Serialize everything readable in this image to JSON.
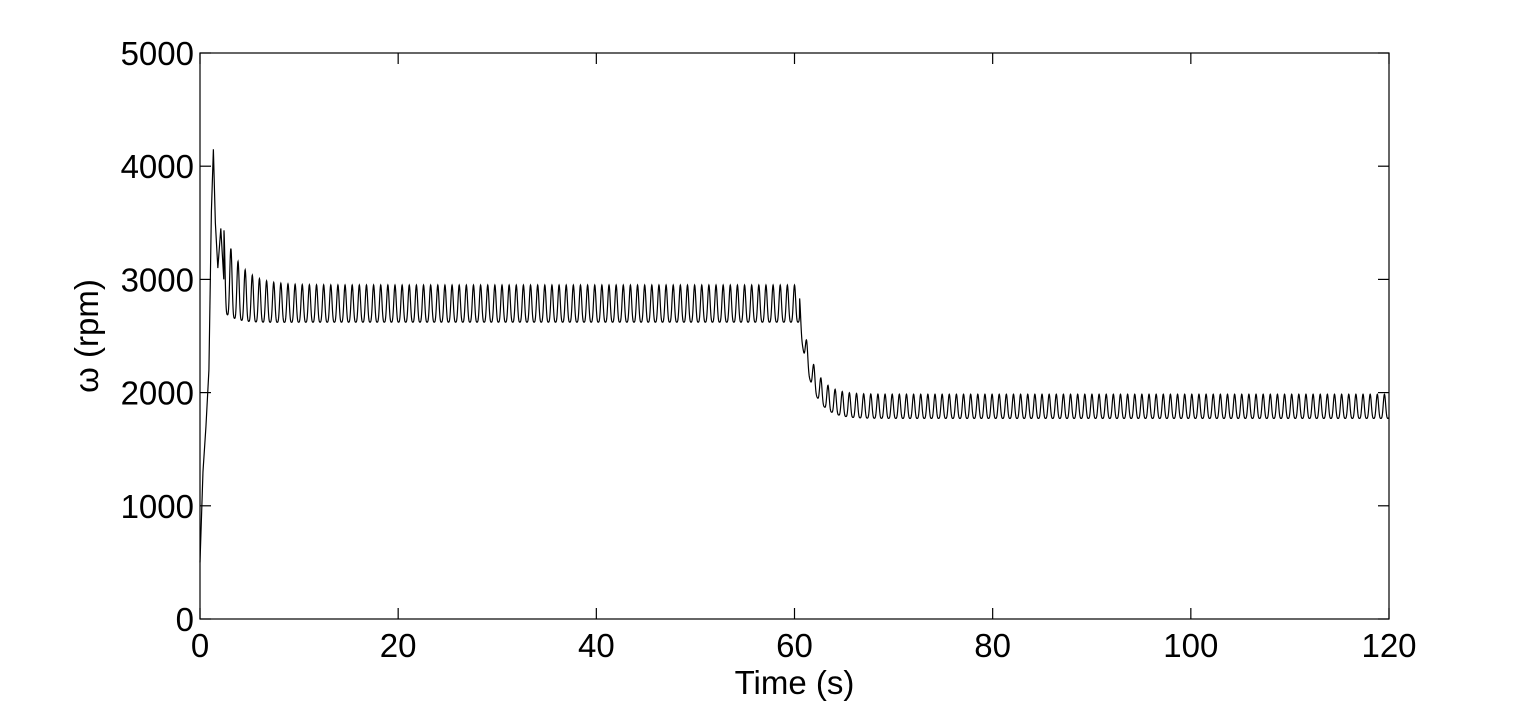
{
  "chart_data": {
    "type": "line",
    "title": "",
    "xlabel": "Time (s)",
    "ylabel": "ω (rpm)",
    "xlim": [
      0,
      120
    ],
    "ylim": [
      0,
      5000
    ],
    "xticks": [
      0,
      20,
      40,
      60,
      80,
      100,
      120
    ],
    "xtick_labels": [
      "0",
      "20",
      "40",
      "60",
      "80",
      "100",
      "120"
    ],
    "yticks": [
      0,
      1000,
      2000,
      3000,
      4000,
      5000
    ],
    "ytick_labels": [
      "0",
      "1000",
      "2000",
      "3000",
      "4000",
      "5000"
    ],
    "grid": false,
    "legend": "none",
    "line_color": "#000000",
    "series": [
      {
        "startup": {
          "x": [
            0.0,
            0.3,
            0.6,
            0.9,
            1.15,
            1.35,
            1.55,
            1.8,
            2.1,
            2.4
          ],
          "y": [
            500,
            1300,
            1700,
            2200,
            3600,
            4150,
            3500,
            3100,
            3450,
            3000
          ]
        },
        "segments": [
          {
            "t_start": 2.4,
            "t_end": 60.5,
            "period": 0.72,
            "center_start": 3000,
            "center_end": 2750,
            "tau_center": 1.5,
            "amp_start": 450,
            "amp_end": 200,
            "tau_amp": 1.8
          },
          {
            "t_start": 60.5,
            "t_end": 120,
            "period": 0.72,
            "center_start": 2700,
            "center_end": 1855,
            "tau_center": 1.2,
            "amp_start": 150,
            "amp_end": 130,
            "tau_amp": 1.5
          }
        ]
      }
    ]
  }
}
